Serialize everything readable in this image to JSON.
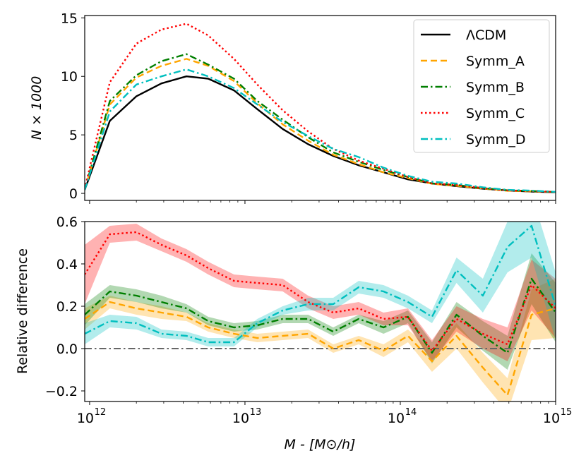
{
  "chart_data": [
    {
      "type": "line",
      "panel": "top",
      "xscale": "log",
      "xlim": [
        930000000000.0,
        1000000000000000.0
      ],
      "ylim": [
        -0.6,
        15.2
      ],
      "ylabel": "N × 1000",
      "yticks": [
        0,
        5,
        10,
        15
      ],
      "ytick_labels": [
        "0",
        "5",
        "10",
        "15"
      ],
      "legend": {
        "placement": "top-right"
      },
      "x": [
        930000000000.0,
        1350000000000.0,
        2000000000000.0,
        2900000000000.0,
        4200000000000.0,
        5800000000000.0,
        8500000000000.0,
        12000000000000.0,
        17500000000000.0,
        25500000000000.0,
        37000000000000.0,
        54000000000000.0,
        78000000000000.0,
        112000000000000.0,
        160000000000000.0,
        230000000000000.0,
        340000000000000.0,
        490000000000000.0,
        700000000000000.0,
        1000000000000000.0
      ],
      "series": [
        {
          "name": "ΛCDM",
          "color": "#000000",
          "dash": "solid",
          "values": [
            0.3,
            6.2,
            8.3,
            9.4,
            10.0,
            9.8,
            8.8,
            7.2,
            5.5,
            4.2,
            3.2,
            2.4,
            1.8,
            1.2,
            0.85,
            0.62,
            0.4,
            0.25,
            0.15,
            0.1
          ]
        },
        {
          "name": "Symm_A",
          "color": "#ffa500",
          "dash": "dashed",
          "values": [
            0.3,
            7.6,
            9.9,
            10.9,
            11.5,
            10.9,
            9.6,
            7.7,
            5.9,
            4.5,
            3.3,
            2.5,
            1.8,
            1.3,
            0.82,
            0.65,
            0.42,
            0.22,
            0.17,
            0.12
          ]
        },
        {
          "name": "Symm_B",
          "color": "#007f00",
          "dash": "dashdot",
          "values": [
            0.3,
            7.9,
            10.1,
            11.3,
            11.9,
            11.0,
            9.8,
            7.9,
            6.3,
            4.8,
            3.5,
            2.7,
            2.0,
            1.4,
            0.85,
            0.72,
            0.45,
            0.26,
            0.2,
            0.12
          ]
        },
        {
          "name": "Symm_C",
          "color": "#ff0000",
          "dash": "dotted",
          "values": [
            0.4,
            9.5,
            12.8,
            14.0,
            14.5,
            13.5,
            11.5,
            9.3,
            7.1,
            5.3,
            3.8,
            2.8,
            2.1,
            1.4,
            0.85,
            0.72,
            0.45,
            0.25,
            0.2,
            0.12
          ]
        },
        {
          "name": "Symm_D",
          "color": "#00bfbf",
          "dash": "dashdot",
          "values": [
            0.3,
            7.0,
            9.3,
            10.0,
            10.6,
            10.0,
            9.0,
            7.6,
            6.1,
            4.9,
            3.8,
            3.1,
            2.2,
            1.5,
            1.0,
            0.84,
            0.52,
            0.3,
            0.24,
            0.13
          ]
        }
      ]
    },
    {
      "type": "line",
      "panel": "bottom",
      "xscale": "log",
      "xlim": [
        930000000000.0,
        1000000000000000.0
      ],
      "ylim": [
        -0.25,
        0.6
      ],
      "xlabel": "M - [M⊙/h]",
      "ylabel": "Relative difference",
      "xticks": [
        1000000000000.0,
        10000000000000.0,
        100000000000000.0,
        1000000000000000.0
      ],
      "xtick_labels": [
        "10",
        "10",
        "10",
        "10"
      ],
      "xtick_exponents": [
        "12",
        "13",
        "14",
        "15"
      ],
      "yticks": [
        -0.2,
        0.0,
        0.2,
        0.4,
        0.6
      ],
      "ytick_labels": [
        "−0.2",
        "0.0",
        "0.2",
        "0.4",
        "0.6"
      ],
      "reference_line": {
        "y": 0.0,
        "color": "#666666",
        "dash": "dashdot"
      },
      "x": [
        930000000000.0,
        1350000000000.0,
        2000000000000.0,
        2900000000000.0,
        4200000000000.0,
        5800000000000.0,
        8500000000000.0,
        12000000000000.0,
        17500000000000.0,
        25500000000000.0,
        37000000000000.0,
        54000000000000.0,
        78000000000000.0,
        112000000000000.0,
        160000000000000.0,
        230000000000000.0,
        340000000000000.0,
        490000000000000.0,
        700000000000000.0,
        1000000000000000.0
      ],
      "series": [
        {
          "name": "Symm_A",
          "color": "#ffa500",
          "dash": "dashed",
          "values": [
            0.14,
            0.22,
            0.19,
            0.17,
            0.15,
            0.1,
            0.07,
            0.05,
            0.06,
            0.07,
            0.0,
            0.04,
            -0.01,
            0.06,
            -0.06,
            0.06,
            -0.09,
            -0.22,
            0.16,
            0.19
          ],
          "band": [
            0.05,
            0.03,
            0.03,
            0.03,
            0.02,
            0.02,
            0.02,
            0.02,
            0.02,
            0.02,
            0.02,
            0.02,
            0.03,
            0.03,
            0.05,
            0.06,
            0.07,
            0.08,
            0.12,
            0.14
          ]
        },
        {
          "name": "Symm_B",
          "color": "#007f00",
          "dash": "dashdot",
          "values": [
            0.16,
            0.27,
            0.25,
            0.22,
            0.19,
            0.13,
            0.1,
            0.11,
            0.14,
            0.14,
            0.08,
            0.14,
            0.1,
            0.15,
            -0.02,
            0.16,
            0.06,
            -0.02,
            0.33,
            0.17
          ],
          "band": [
            0.05,
            0.03,
            0.03,
            0.03,
            0.02,
            0.02,
            0.02,
            0.02,
            0.02,
            0.02,
            0.02,
            0.02,
            0.03,
            0.03,
            0.05,
            0.06,
            0.07,
            0.08,
            0.12,
            0.14
          ]
        },
        {
          "name": "Symm_C",
          "color": "#ff0000",
          "dash": "dotted",
          "values": [
            0.35,
            0.54,
            0.55,
            0.49,
            0.44,
            0.38,
            0.32,
            0.31,
            0.3,
            0.22,
            0.17,
            0.19,
            0.14,
            0.15,
            -0.01,
            0.14,
            0.07,
            0.02,
            0.3,
            0.19
          ],
          "band": [
            0.14,
            0.04,
            0.04,
            0.03,
            0.03,
            0.03,
            0.03,
            0.03,
            0.03,
            0.03,
            0.03,
            0.03,
            0.03,
            0.04,
            0.05,
            0.06,
            0.07,
            0.08,
            0.12,
            0.14
          ]
        },
        {
          "name": "Symm_D",
          "color": "#00bfbf",
          "dash": "dashdot",
          "values": [
            0.07,
            0.13,
            0.12,
            0.07,
            0.06,
            0.03,
            0.03,
            0.12,
            0.18,
            0.21,
            0.21,
            0.29,
            0.27,
            0.22,
            0.15,
            0.37,
            0.25,
            0.48,
            0.58,
            0.2
          ],
          "band": [
            0.05,
            0.03,
            0.03,
            0.02,
            0.02,
            0.02,
            0.02,
            0.02,
            0.02,
            0.03,
            0.03,
            0.03,
            0.03,
            0.03,
            0.03,
            0.06,
            0.08,
            0.12,
            0.15,
            0.16
          ]
        }
      ]
    }
  ],
  "legend_labels": [
    "ΛCDM",
    "Symm_A",
    "Symm_B",
    "Symm_C",
    "Symm_D"
  ]
}
